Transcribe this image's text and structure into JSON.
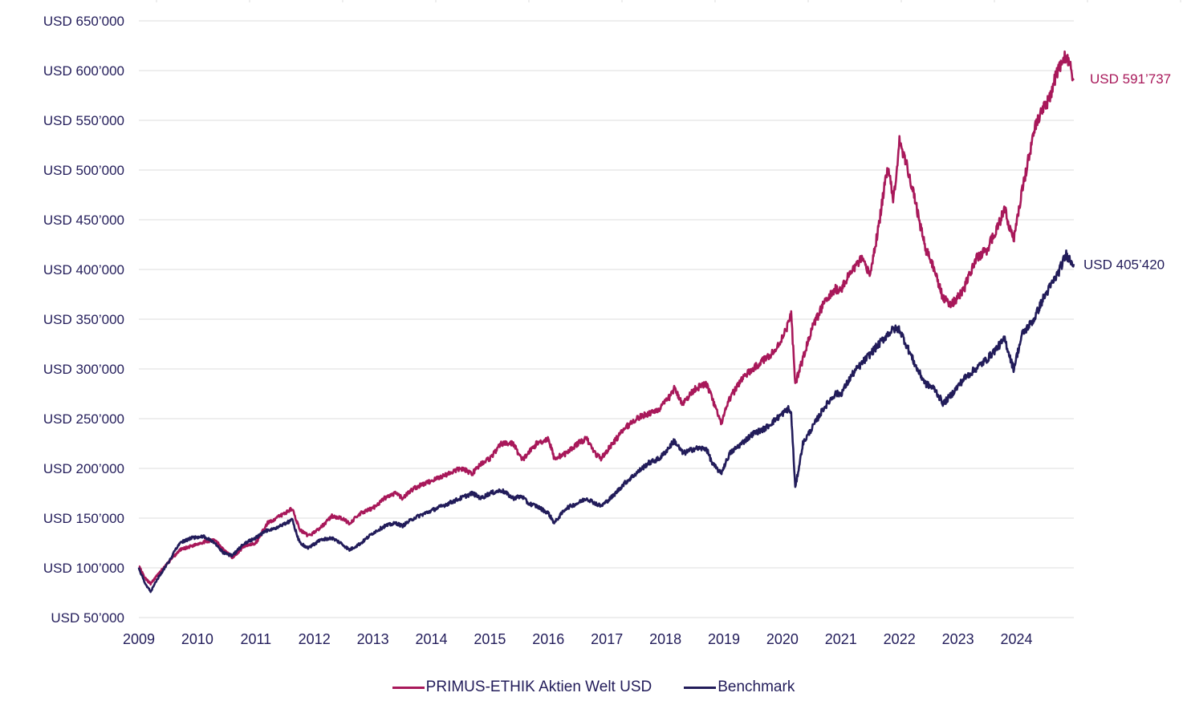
{
  "chart_data": {
    "type": "line",
    "title": "",
    "xlabel": "",
    "ylabel": "",
    "x_ticks": [
      "2009",
      "2010",
      "2011",
      "2012",
      "2013",
      "2014",
      "2015",
      "2016",
      "2017",
      "2018",
      "2019",
      "2020",
      "2021",
      "2022",
      "2023",
      "2024"
    ],
    "y_ticks": [
      {
        "value": 50000,
        "label": "USD 50’000"
      },
      {
        "value": 100000,
        "label": "USD 100’000"
      },
      {
        "value": 150000,
        "label": "USD 150’000"
      },
      {
        "value": 200000,
        "label": "USD 200’000"
      },
      {
        "value": 250000,
        "label": "USD 250’000"
      },
      {
        "value": 300000,
        "label": "USD 300’000"
      },
      {
        "value": 350000,
        "label": "USD 350’000"
      },
      {
        "value": 400000,
        "label": "USD 400’000"
      },
      {
        "value": 450000,
        "label": "USD 450’000"
      },
      {
        "value": 500000,
        "label": "USD 500’000"
      },
      {
        "value": 550000,
        "label": "USD 550’000"
      },
      {
        "value": 600000,
        "label": "USD 600’000"
      },
      {
        "value": 650000,
        "label": "USD 650’000"
      }
    ],
    "xlim": [
      2009.0,
      2025.0
    ],
    "ylim": [
      50000,
      650000
    ],
    "grid": true,
    "legend_position": "bottom-center",
    "series": [
      {
        "name": "PRIMUS-ETHIK Aktien Welt USD",
        "color": "#a8185a",
        "end_label": "USD 591’737",
        "x": [
          2009.0,
          2009.1,
          2009.2,
          2009.35,
          2009.5,
          2009.7,
          2009.9,
          2010.1,
          2010.3,
          2010.45,
          2010.6,
          2010.8,
          2011.0,
          2011.2,
          2011.35,
          2011.5,
          2011.62,
          2011.75,
          2011.9,
          2012.1,
          2012.3,
          2012.45,
          2012.6,
          2012.8,
          2013.0,
          2013.2,
          2013.4,
          2013.5,
          2013.7,
          2013.9,
          2014.1,
          2014.3,
          2014.5,
          2014.7,
          2014.85,
          2015.0,
          2015.2,
          2015.4,
          2015.55,
          2015.65,
          2015.8,
          2016.0,
          2016.1,
          2016.3,
          2016.5,
          2016.65,
          2016.8,
          2016.9,
          2017.1,
          2017.3,
          2017.5,
          2017.7,
          2017.9,
          2018.05,
          2018.15,
          2018.3,
          2018.5,
          2018.7,
          2018.8,
          2018.95,
          2019.1,
          2019.3,
          2019.5,
          2019.7,
          2019.9,
          2020.1,
          2020.15,
          2020.22,
          2020.35,
          2020.5,
          2020.7,
          2020.9,
          2021.0,
          2021.2,
          2021.35,
          2021.5,
          2021.65,
          2021.8,
          2021.9,
          2022.0,
          2022.15,
          2022.3,
          2022.45,
          2022.6,
          2022.75,
          2022.9,
          2023.1,
          2023.3,
          2023.5,
          2023.65,
          2023.8,
          2023.95,
          2024.1,
          2024.3,
          2024.45,
          2024.55,
          2024.7,
          2024.85,
          2024.98
        ],
        "y": [
          102000,
          90000,
          84000,
          95000,
          105000,
          118000,
          122000,
          126000,
          128000,
          118000,
          110000,
          122000,
          125000,
          145000,
          150000,
          155000,
          160000,
          138000,
          132000,
          140000,
          152000,
          150000,
          145000,
          155000,
          160000,
          170000,
          175000,
          170000,
          180000,
          185000,
          190000,
          195000,
          200000,
          195000,
          205000,
          210000,
          225000,
          225000,
          208000,
          215000,
          225000,
          230000,
          210000,
          215000,
          225000,
          230000,
          215000,
          210000,
          225000,
          240000,
          250000,
          255000,
          260000,
          270000,
          280000,
          265000,
          280000,
          285000,
          270000,
          245000,
          270000,
          290000,
          300000,
          310000,
          320000,
          345000,
          355000,
          285000,
          310000,
          340000,
          365000,
          380000,
          380000,
          400000,
          410000,
          395000,
          445000,
          505000,
          470000,
          530000,
          500000,
          460000,
          420000,
          400000,
          370000,
          365000,
          380000,
          410000,
          420000,
          440000,
          460000,
          430000,
          480000,
          540000,
          560000,
          570000,
          600000,
          615000,
          591737
        ]
      },
      {
        "name": "Benchmark",
        "color": "#221c5a",
        "end_label": "USD 405’420",
        "x": [
          2009.0,
          2009.1,
          2009.2,
          2009.35,
          2009.5,
          2009.7,
          2009.9,
          2010.1,
          2010.3,
          2010.45,
          2010.6,
          2010.8,
          2011.0,
          2011.2,
          2011.35,
          2011.5,
          2011.62,
          2011.75,
          2011.9,
          2012.1,
          2012.3,
          2012.45,
          2012.6,
          2012.8,
          2013.0,
          2013.2,
          2013.4,
          2013.5,
          2013.7,
          2013.9,
          2014.1,
          2014.3,
          2014.5,
          2014.7,
          2014.85,
          2015.0,
          2015.2,
          2015.4,
          2015.55,
          2015.65,
          2015.8,
          2016.0,
          2016.1,
          2016.3,
          2016.5,
          2016.65,
          2016.8,
          2016.9,
          2017.1,
          2017.3,
          2017.5,
          2017.7,
          2017.9,
          2018.05,
          2018.15,
          2018.3,
          2018.5,
          2018.7,
          2018.8,
          2018.95,
          2019.1,
          2019.3,
          2019.5,
          2019.7,
          2019.9,
          2020.1,
          2020.15,
          2020.22,
          2020.35,
          2020.5,
          2020.7,
          2020.9,
          2021.0,
          2021.2,
          2021.35,
          2021.5,
          2021.65,
          2021.8,
          2021.9,
          2022.0,
          2022.15,
          2022.3,
          2022.45,
          2022.6,
          2022.75,
          2022.9,
          2023.1,
          2023.3,
          2023.5,
          2023.65,
          2023.8,
          2023.95,
          2024.1,
          2024.3,
          2024.45,
          2024.55,
          2024.7,
          2024.85,
          2024.98
        ],
        "y": [
          100000,
          85000,
          76000,
          92000,
          105000,
          125000,
          130000,
          132000,
          125000,
          115000,
          112000,
          125000,
          130000,
          138000,
          140000,
          145000,
          148000,
          125000,
          120000,
          128000,
          130000,
          125000,
          118000,
          125000,
          135000,
          142000,
          145000,
          142000,
          150000,
          155000,
          160000,
          165000,
          170000,
          175000,
          170000,
          175000,
          178000,
          170000,
          172000,
          165000,
          162000,
          155000,
          145000,
          160000,
          165000,
          170000,
          165000,
          162000,
          172000,
          185000,
          195000,
          205000,
          210000,
          220000,
          228000,
          215000,
          220000,
          220000,
          205000,
          195000,
          215000,
          225000,
          235000,
          240000,
          250000,
          260000,
          255000,
          180000,
          225000,
          240000,
          260000,
          275000,
          275000,
          295000,
          305000,
          315000,
          325000,
          335000,
          340000,
          340000,
          320000,
          300000,
          285000,
          280000,
          265000,
          275000,
          290000,
          300000,
          310000,
          320000,
          330000,
          300000,
          335000,
          350000,
          370000,
          380000,
          395000,
          415000,
          405420
        ]
      }
    ]
  },
  "legend": {
    "items": [
      {
        "label": "PRIMUS-ETHIK Aktien Welt USD",
        "color": "#a8185a"
      },
      {
        "label": "Benchmark",
        "color": "#221c5a"
      }
    ]
  }
}
